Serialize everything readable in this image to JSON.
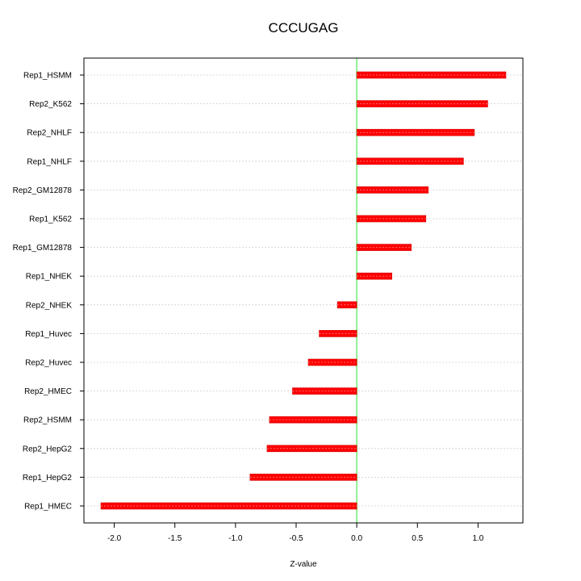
{
  "chart_data": {
    "type": "bar",
    "orientation": "horizontal",
    "title": "CCCUGAG",
    "xlabel": "Z-value",
    "ylabel": "",
    "xlim": [
      -2.25,
      1.37
    ],
    "x_ticks": [
      -2.0,
      -1.5,
      -1.0,
      -0.5,
      0.0,
      0.5,
      1.0
    ],
    "x_tick_labels": [
      "-2.0",
      "-1.5",
      "-1.0",
      "-0.5",
      "0.0",
      "0.5",
      "1.0"
    ],
    "categories": [
      "Rep1_HSMM",
      "Rep2_K562",
      "Rep2_NHLF",
      "Rep1_NHLF",
      "Rep2_GM12878",
      "Rep1_K562",
      "Rep1_GM12878",
      "Rep1_NHEK",
      "Rep2_NHEK",
      "Rep1_Huvec",
      "Rep2_Huvec",
      "Rep2_HMEC",
      "Rep2_HSMM",
      "Rep2_HepG2",
      "Rep1_HepG2",
      "Rep1_HMEC"
    ],
    "values": [
      1.23,
      1.08,
      0.97,
      0.88,
      0.59,
      0.57,
      0.45,
      0.29,
      -0.16,
      -0.31,
      -0.4,
      -0.53,
      -0.72,
      -0.74,
      -0.88,
      -2.11
    ],
    "bar_color": "#ff0000",
    "zero_line_color": "#90ee90",
    "grid": true
  }
}
